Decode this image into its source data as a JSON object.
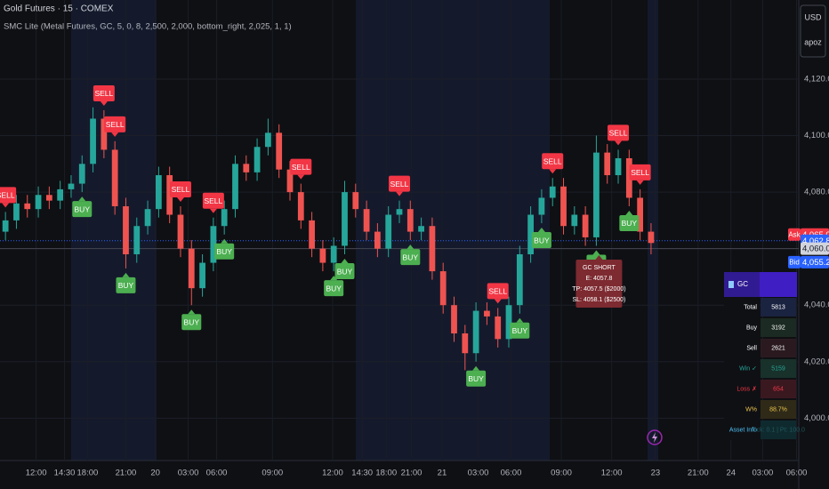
{
  "header": {
    "title": "Gold Futures · 15 · COMEX",
    "indicator": "SMC Lite (Metal Futures, GC, 5, 0, 8, 2,500, 2,000, bottom_right, 2,025, 1, 1)",
    "currency": "USD",
    "unit_mode": "apoz"
  },
  "chart_data": {
    "type": "candlestick",
    "up_color": "#26a69a",
    "down_color": "#ef5350",
    "grid": true,
    "xlim": [
      0,
      73
    ],
    "ylim": [
      3985,
      4148
    ],
    "yticks": [
      {
        "value": 4000,
        "label": "4,000.0"
      },
      {
        "value": 4020,
        "label": "4,020.0"
      },
      {
        "value": 4040,
        "label": "4,040.0"
      },
      {
        "value": 4060,
        "label": "4,060.0"
      },
      {
        "value": 4080,
        "label": "4,080.0"
      },
      {
        "value": 4100,
        "label": "4,100.0"
      },
      {
        "value": 4120,
        "label": "4,120.0"
      }
    ],
    "xticks": [
      {
        "value": 3.3,
        "label": "12:00"
      },
      {
        "value": 5.9,
        "label": "14:30"
      },
      {
        "value": 8,
        "label": "18:00"
      },
      {
        "value": 11.5,
        "label": "21:00"
      },
      {
        "value": 14.2,
        "label": "20"
      },
      {
        "value": 17.2,
        "label": "03:00"
      },
      {
        "value": 19.8,
        "label": "06:00"
      },
      {
        "value": 24.9,
        "label": "09:00"
      },
      {
        "value": 30.4,
        "label": "12:00"
      },
      {
        "value": 33.1,
        "label": "14:30"
      },
      {
        "value": 35.3,
        "label": "18:00"
      },
      {
        "value": 37.6,
        "label": "21:00"
      },
      {
        "value": 40.4,
        "label": "21"
      },
      {
        "value": 43.7,
        "label": "03:00"
      },
      {
        "value": 46.7,
        "label": "06:00"
      },
      {
        "value": 51.3,
        "label": "09:00"
      },
      {
        "value": 55.9,
        "label": "12:00"
      },
      {
        "value": 59.9,
        "label": "23"
      },
      {
        "value": 63.8,
        "label": "21:00"
      },
      {
        "value": 66.8,
        "label": "24"
      },
      {
        "value": 69.7,
        "label": "03:00"
      },
      {
        "value": 72.8,
        "label": "06:00"
      }
    ],
    "open": [
      4066,
      4070,
      4076,
      4074,
      4079,
      4077,
      4081,
      4083,
      4090,
      4106,
      4095,
      4075,
      4058,
      4068,
      4074,
      4086,
      4072,
      4060,
      4046,
      4055,
      4068,
      4074,
      4090,
      4087,
      4096,
      4101,
      4088,
      4080,
      4070,
      4060,
      4055,
      4061,
      4080,
      4074,
      4066,
      4060,
      4072,
      4074,
      4066,
      4068,
      4052,
      4040,
      4030,
      4023,
      4038,
      4036,
      4028,
      4040,
      4058,
      4072,
      4078,
      4082,
      4068,
      4072,
      4064,
      4094,
      4086,
      4092,
      4078,
      4066
    ],
    "high": [
      4073,
      4079,
      4079,
      4082,
      4082,
      4084,
      4086,
      4093,
      4110,
      4109,
      4098,
      4078,
      4071,
      4077,
      4089,
      4089,
      4075,
      4063,
      4058,
      4071,
      4077,
      4093,
      4093,
      4099,
      4106,
      4104,
      4091,
      4083,
      4073,
      4063,
      4064,
      4084,
      4083,
      4077,
      4069,
      4075,
      4077,
      4077,
      4071,
      4071,
      4055,
      4043,
      4033,
      4041,
      4041,
      4039,
      4043,
      4061,
      4075,
      4081,
      4085,
      4085,
      4075,
      4075,
      4100,
      4097,
      4095,
      4095,
      4081,
      4069
    ],
    "low": [
      4063,
      4067,
      4071,
      4071,
      4074,
      4074,
      4078,
      4080,
      4087,
      4092,
      4072,
      4053,
      4055,
      4065,
      4071,
      4069,
      4057,
      4040,
      4043,
      4052,
      4065,
      4071,
      4084,
      4084,
      4093,
      4085,
      4077,
      4067,
      4057,
      4052,
      4052,
      4058,
      4071,
      4063,
      4057,
      4057,
      4069,
      4063,
      4063,
      4049,
      4037,
      4027,
      4017,
      4020,
      4033,
      4025,
      4025,
      4037,
      4055,
      4069,
      4075,
      4065,
      4065,
      4061,
      4061,
      4083,
      4083,
      4075,
      4063,
      4058
    ],
    "close": [
      4070,
      4076,
      4074,
      4079,
      4077,
      4081,
      4083,
      4090,
      4106,
      4095,
      4075,
      4058,
      4068,
      4074,
      4086,
      4072,
      4060,
      4046,
      4055,
      4068,
      4074,
      4090,
      4087,
      4096,
      4101,
      4088,
      4080,
      4070,
      4060,
      4055,
      4061,
      4080,
      4074,
      4066,
      4060,
      4072,
      4074,
      4066,
      4068,
      4052,
      4040,
      4030,
      4023,
      4038,
      4036,
      4028,
      4040,
      4058,
      4072,
      4078,
      4082,
      4068,
      4072,
      4064,
      4094,
      4086,
      4092,
      4078,
      4066,
      4062
    ],
    "signals": [
      {
        "label": "SELL",
        "candle": 0
      },
      {
        "label": "SELL",
        "candle": 9
      },
      {
        "label": "SELL",
        "candle": 10
      },
      {
        "label": "BUY",
        "candle": 7
      },
      {
        "label": "BUY",
        "candle": 11
      },
      {
        "label": "SELL",
        "candle": 16
      },
      {
        "label": "SELL",
        "candle": 19
      },
      {
        "label": "BUY",
        "candle": 17
      },
      {
        "label": "BUY",
        "candle": 20
      },
      {
        "label": "SELL",
        "candle": 27
      },
      {
        "label": "BUY",
        "candle": 30
      },
      {
        "label": "BUY",
        "candle": 31
      },
      {
        "label": "SELL",
        "candle": 36
      },
      {
        "label": "BUY",
        "candle": 37
      },
      {
        "label": "SELL",
        "candle": 45
      },
      {
        "label": "BUY",
        "candle": 43
      },
      {
        "label": "BUY",
        "candle": 47
      },
      {
        "label": "BUY",
        "candle": 49
      },
      {
        "label": "SELL",
        "candle": 50
      },
      {
        "label": "SELL",
        "candle": 56
      },
      {
        "label": "SELL",
        "candle": 58
      },
      {
        "label": "BUY",
        "candle": 57
      },
      {
        "label": "BUY",
        "candle": 54
      }
    ],
    "price_tags": [
      {
        "name": "Ask",
        "value": 4065,
        "label": "4,065.0",
        "color": "#f23645"
      },
      {
        "value": 4062.8,
        "label": "4,062.8",
        "color": "#2962ff"
      },
      {
        "value": 4060,
        "label": "4,060.0",
        "color": "#d1d4dc"
      },
      {
        "name": "Bid",
        "value": 4055.2,
        "label": "4,055.2",
        "color": "#2962ff"
      }
    ],
    "trade_box": {
      "lines": [
        "GC SHORT",
        "E: 4057.8",
        "TP: 4057.5 ($2000)",
        "SL: 4058.1 ($2500)"
      ],
      "candle": 54
    }
  },
  "stats_table": {
    "title": "GC",
    "rows": [
      [
        "Total",
        "5813"
      ],
      [
        "Buy",
        "3192"
      ],
      [
        "Sell",
        "2621"
      ],
      [
        "Win ✓",
        "5159"
      ],
      [
        "Loss ✗",
        "654"
      ],
      [
        "W%",
        "88.7%"
      ],
      [
        "Asset Info",
        "Tick: 0.1 | Pt: 100.0"
      ]
    ]
  }
}
